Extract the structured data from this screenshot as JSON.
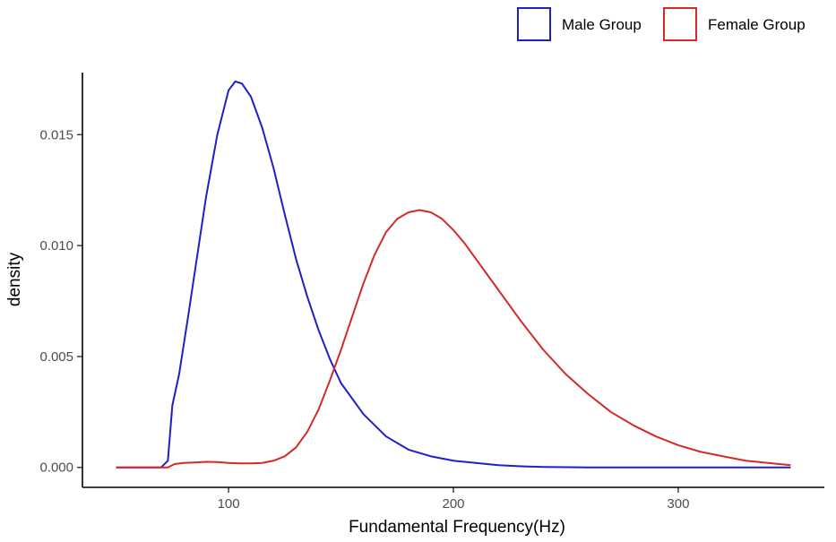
{
  "chart_data": {
    "type": "line",
    "xlabel": "Fundamental Frequency(Hz)",
    "ylabel": "density",
    "xlim": [
      35,
      365
    ],
    "ylim": [
      -0.0009,
      0.0178
    ],
    "x_ticks": [
      100,
      200,
      300
    ],
    "y_ticks": [
      0.0,
      0.005,
      0.01,
      0.015
    ],
    "x_tick_labels": [
      "100",
      "200",
      "300"
    ],
    "y_tick_labels": [
      "0.000",
      "0.005",
      "0.010",
      "0.015"
    ],
    "grid": false,
    "legend_position": "top-right",
    "series": [
      {
        "name": "Male Group",
        "color": "#1f1fc9",
        "x": [
          50,
          60,
          70,
          73,
          75,
          78,
          82,
          86,
          90,
          95,
          100,
          103,
          106,
          110,
          115,
          120,
          125,
          130,
          135,
          140,
          145,
          150,
          160,
          170,
          180,
          190,
          200,
          210,
          220,
          230,
          240,
          260,
          280,
          300,
          350
        ],
        "y": [
          0.0,
          0.0,
          0.0,
          0.0003,
          0.0028,
          0.0042,
          0.0068,
          0.0095,
          0.0122,
          0.015,
          0.017,
          0.0174,
          0.0173,
          0.0167,
          0.0153,
          0.0135,
          0.0114,
          0.0094,
          0.0077,
          0.0062,
          0.0049,
          0.0038,
          0.0024,
          0.0014,
          0.0008,
          0.0005,
          0.0003,
          0.0002,
          0.0001,
          5e-05,
          2e-05,
          0.0,
          0.0,
          0.0,
          0.0
        ]
      },
      {
        "name": "Female Group",
        "color": "#d42a2a",
        "x": [
          50,
          60,
          70,
          73,
          76,
          80,
          85,
          90,
          95,
          100,
          105,
          110,
          115,
          120,
          125,
          130,
          135,
          140,
          145,
          150,
          155,
          160,
          165,
          170,
          175,
          180,
          185,
          190,
          195,
          200,
          205,
          210,
          220,
          230,
          240,
          250,
          260,
          270,
          280,
          290,
          300,
          310,
          320,
          330,
          340,
          350
        ],
        "y": [
          0.0,
          0.0,
          0.0,
          0.0,
          0.00015,
          0.0002,
          0.00022,
          0.00025,
          0.00024,
          0.0002,
          0.00018,
          0.00018,
          0.0002,
          0.0003,
          0.0005,
          0.0009,
          0.0016,
          0.0026,
          0.0039,
          0.0053,
          0.0068,
          0.0083,
          0.0096,
          0.0106,
          0.0112,
          0.0115,
          0.0116,
          0.0115,
          0.0112,
          0.0107,
          0.0101,
          0.0094,
          0.008,
          0.0066,
          0.0053,
          0.0042,
          0.0033,
          0.0025,
          0.0019,
          0.0014,
          0.001,
          0.0007,
          0.0005,
          0.0003,
          0.0002,
          0.0001
        ]
      }
    ]
  }
}
